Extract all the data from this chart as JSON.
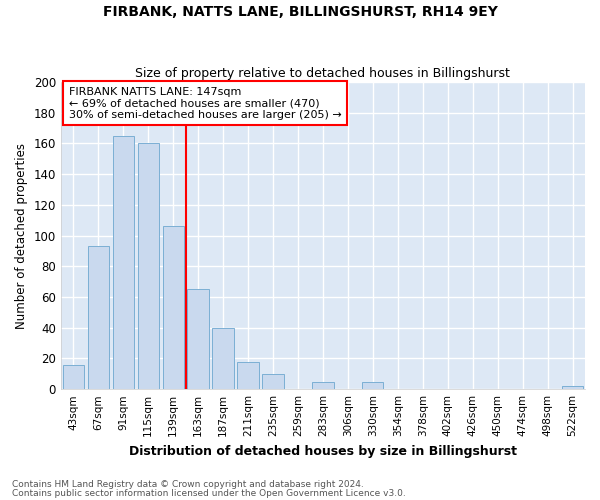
{
  "title1": "FIRBANK, NATTS LANE, BILLINGSHURST, RH14 9EY",
  "title2": "Size of property relative to detached houses in Billingshurst",
  "xlabel": "Distribution of detached houses by size in Billingshurst",
  "ylabel": "Number of detached properties",
  "categories": [
    "43sqm",
    "67sqm",
    "91sqm",
    "115sqm",
    "139sqm",
    "163sqm",
    "187sqm",
    "211sqm",
    "235sqm",
    "259sqm",
    "283sqm",
    "306sqm",
    "330sqm",
    "354sqm",
    "378sqm",
    "402sqm",
    "426sqm",
    "450sqm",
    "474sqm",
    "498sqm",
    "522sqm"
  ],
  "values": [
    16,
    93,
    165,
    160,
    106,
    65,
    40,
    18,
    10,
    0,
    5,
    0,
    5,
    0,
    0,
    0,
    0,
    0,
    0,
    0,
    2
  ],
  "bar_color": "#c9d9ee",
  "bar_edge_color": "#7bafd4",
  "property_line_x": 4.5,
  "annotation_text": "FIRBANK NATTS LANE: 147sqm\n← 69% of detached houses are smaller (470)\n30% of semi-detached houses are larger (205) →",
  "annotation_box_color": "white",
  "annotation_box_edge": "red",
  "vline_color": "red",
  "footer1": "Contains HM Land Registry data © Crown copyright and database right 2024.",
  "footer2": "Contains public sector information licensed under the Open Government Licence v3.0.",
  "ylim": [
    0,
    200
  ],
  "yticks": [
    0,
    20,
    40,
    60,
    80,
    100,
    120,
    140,
    160,
    180,
    200
  ],
  "background_color": "#dde8f5",
  "fig_background": "#ffffff",
  "grid_color": "#ffffff"
}
